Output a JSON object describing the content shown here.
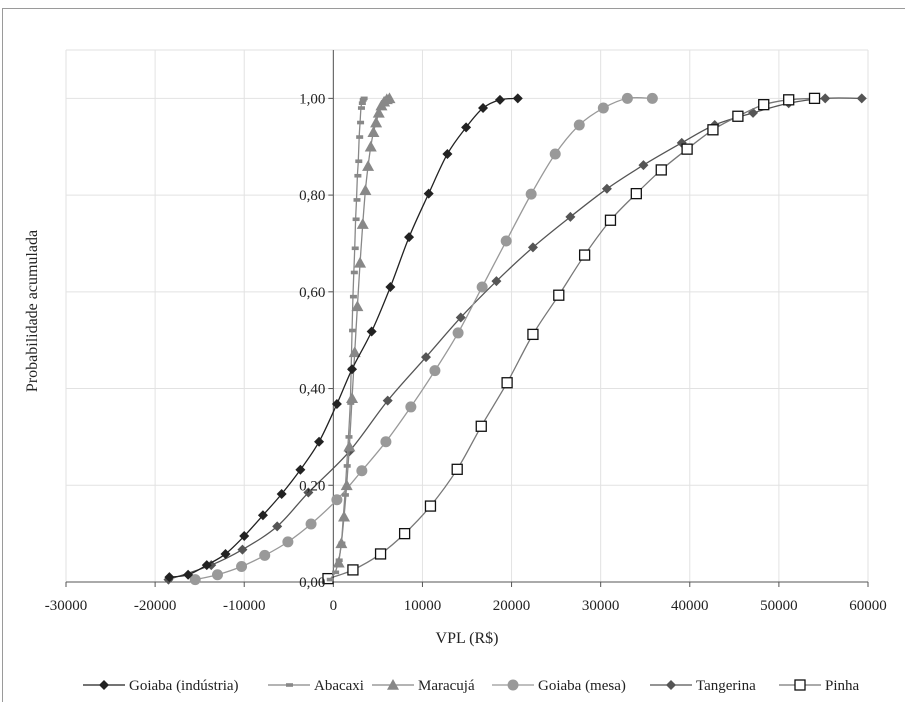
{
  "chart_data": {
    "type": "line",
    "xlabel": "VPL (R$)",
    "ylabel": "Probabilidade acumulada",
    "xlim": [
      -30000,
      60000
    ],
    "ylim": [
      0,
      1.1
    ],
    "x_ticks": [
      -30000,
      -20000,
      -10000,
      0,
      10000,
      20000,
      30000,
      40000,
      50000,
      60000
    ],
    "y_ticks": [
      0,
      0.2,
      0.4,
      0.6,
      0.8,
      1.0
    ],
    "x_tick_labels": [
      "-30000",
      "-20000",
      "-10000",
      "0",
      "10000",
      "20000",
      "30000",
      "40000",
      "50000",
      "60000"
    ],
    "y_tick_labels": [
      "0,00",
      "0,20",
      "0,40",
      "0,60",
      "0,80",
      "1,00"
    ],
    "grid": true,
    "legend_position": "bottom",
    "series": [
      {
        "name": "Goiaba (indústria)",
        "color": "#222222",
        "marker": "diamond",
        "x": [
          -18400,
          -16300,
          -14200,
          -12100,
          -10000,
          -7900,
          -5800,
          -3700,
          -1600,
          400,
          2100,
          4300,
          6400,
          8500,
          10700,
          12800,
          14900,
          16800,
          18700,
          20700
        ],
        "y": [
          0.01,
          0.015,
          0.035,
          0.058,
          0.095,
          0.138,
          0.182,
          0.232,
          0.29,
          0.368,
          0.44,
          0.518,
          0.61,
          0.713,
          0.803,
          0.885,
          0.94,
          0.98,
          0.997,
          1.0
        ]
      },
      {
        "name": "Abacaxi",
        "color": "#888888",
        "marker": "dash",
        "x": [
          -400,
          200,
          600,
          900,
          1100,
          1300,
          1500,
          1700,
          1900,
          2000,
          2100,
          2200,
          2300,
          2400,
          2500,
          2600,
          2700,
          2800,
          2900,
          3000,
          3100,
          3200,
          3300,
          3400
        ],
        "y": [
          0.005,
          0.02,
          0.045,
          0.08,
          0.13,
          0.18,
          0.24,
          0.3,
          0.37,
          0.44,
          0.52,
          0.59,
          0.64,
          0.69,
          0.75,
          0.79,
          0.84,
          0.87,
          0.92,
          0.95,
          0.98,
          0.99,
          0.997,
          1.0
        ]
      },
      {
        "name": "Maracujá",
        "color": "#888888",
        "marker": "triangle",
        "x": [
          600,
          900,
          1200,
          1500,
          1800,
          2100,
          2400,
          2700,
          3000,
          3300,
          3600,
          3900,
          4200,
          4500,
          4800,
          5100,
          5400,
          5700,
          6000,
          6300
        ],
        "y": [
          0.04,
          0.08,
          0.135,
          0.2,
          0.28,
          0.38,
          0.475,
          0.57,
          0.66,
          0.74,
          0.81,
          0.86,
          0.9,
          0.93,
          0.95,
          0.97,
          0.985,
          0.993,
          0.998,
          1.0
        ]
      },
      {
        "name": "Goiaba (mesa)",
        "color": "#999999",
        "marker": "circle",
        "x": [
          -15500,
          -13000,
          -10300,
          -7700,
          -5100,
          -2500,
          400,
          3200,
          5900,
          8700,
          11400,
          14000,
          16700,
          19400,
          22200,
          24900,
          27600,
          30300,
          33000,
          35800
        ],
        "y": [
          0.005,
          0.015,
          0.032,
          0.055,
          0.083,
          0.12,
          0.17,
          0.23,
          0.29,
          0.362,
          0.437,
          0.515,
          0.61,
          0.705,
          0.802,
          0.885,
          0.945,
          0.98,
          1.0,
          1.0
        ]
      },
      {
        "name": "Tangerina",
        "color": "#555555",
        "marker": "diamond",
        "x": [
          -18500,
          -13700,
          -10200,
          -6300,
          -2800,
          1800,
          6100,
          10400,
          14300,
          18300,
          22400,
          26600,
          30700,
          34800,
          39100,
          42800,
          47100,
          51100,
          55200,
          59300
        ],
        "y": [
          0.005,
          0.035,
          0.067,
          0.115,
          0.185,
          0.27,
          0.375,
          0.465,
          0.547,
          0.622,
          0.692,
          0.755,
          0.813,
          0.862,
          0.908,
          0.945,
          0.97,
          0.99,
          1.0,
          1.0
        ]
      },
      {
        "name": "Pinha",
        "color": "#777777",
        "marker": "square-open",
        "x": [
          -600,
          2200,
          5300,
          8000,
          10900,
          13900,
          16600,
          19500,
          22400,
          25300,
          28200,
          31100,
          34000,
          36800,
          39700,
          42600,
          45400,
          48300,
          51100,
          54000
        ],
        "y": [
          0.007,
          0.025,
          0.058,
          0.1,
          0.157,
          0.233,
          0.322,
          0.412,
          0.512,
          0.593,
          0.676,
          0.748,
          0.803,
          0.852,
          0.895,
          0.935,
          0.963,
          0.987,
          0.997,
          1.0
        ]
      }
    ]
  }
}
